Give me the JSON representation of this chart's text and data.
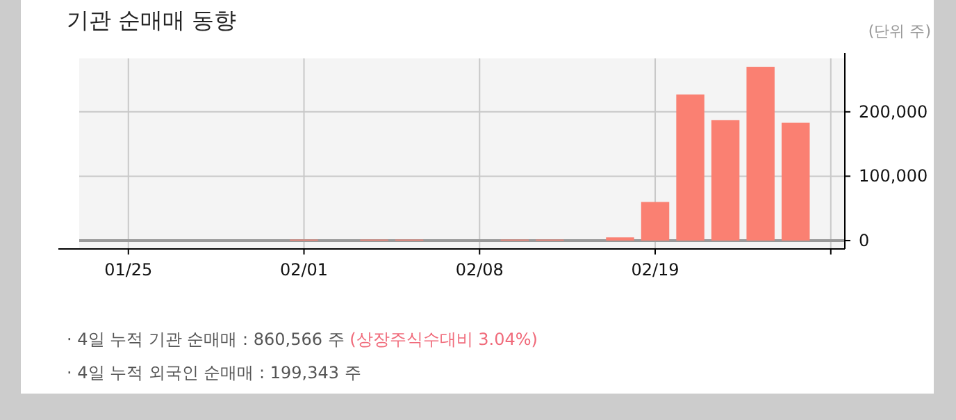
{
  "chart_data": {
    "type": "bar",
    "title": "기관 순매매 동향",
    "categories": [
      null,
      "01/25",
      null,
      null,
      null,
      null,
      "02/01",
      null,
      null,
      null,
      null,
      "02/08",
      null,
      null,
      null,
      null,
      "02/19",
      null,
      null,
      null,
      null,
      null
    ],
    "values": [
      0,
      0,
      0,
      0,
      0,
      0,
      1500,
      0,
      1500,
      1500,
      0,
      0,
      1500,
      1500,
      0,
      5000,
      60000,
      227000,
      187000,
      270000,
      183000,
      null
    ],
    "color": "#fa8072",
    "ylim": [
      -13000,
      283000
    ],
    "yticks": [
      0,
      {
        "value": 100000,
        "label": "100,000"
      },
      {
        "value": 200000,
        "label": "200,000"
      }
    ],
    "grid": true,
    "annotations": [
      "(단위 주)",
      "· 4일 누적 기관 순매매 : 860,566 주",
      "(상장주식수대비 3.04%)",
      "· 4일 누적 외국인 순매매 : 199,343 주"
    ]
  }
}
